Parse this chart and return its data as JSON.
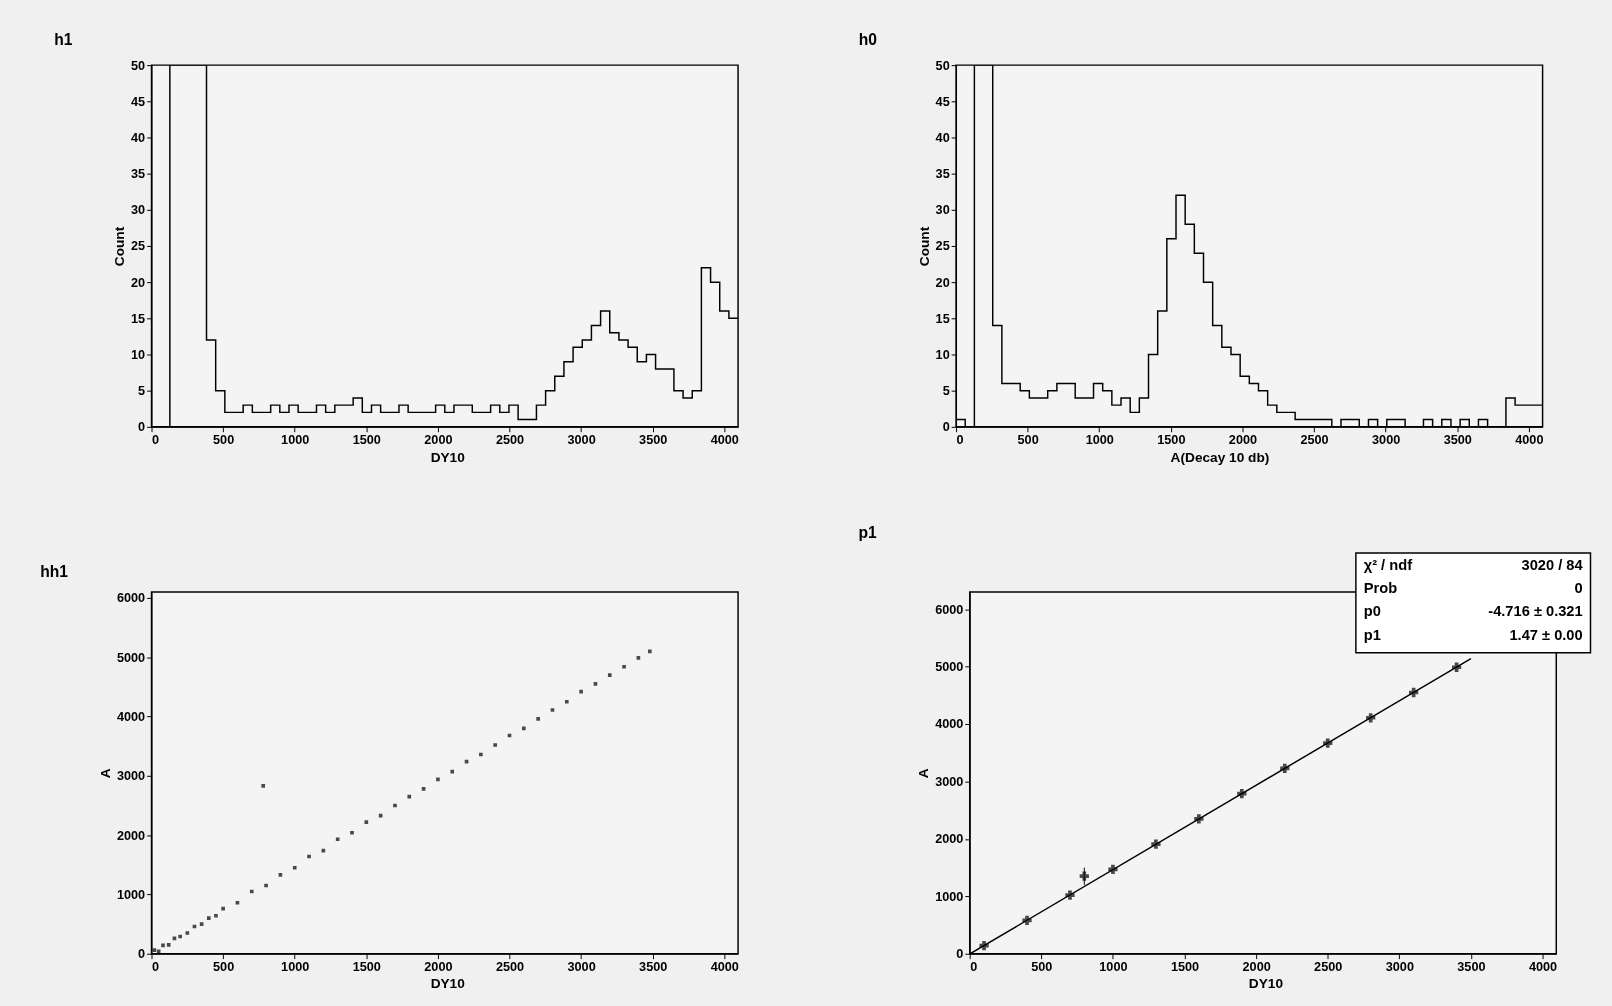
{
  "chart_data": [
    {
      "type": "histogram",
      "title": "h1",
      "xlabel": "DY10",
      "ylabel": "Count",
      "color": "#000000",
      "bins": [
        0,
        64,
        128,
        192,
        256,
        320,
        384,
        448,
        512,
        576,
        640,
        704,
        768,
        832,
        896,
        960,
        1024,
        1088,
        1152,
        1216,
        1280,
        1344,
        1408,
        1472,
        1536,
        1600,
        1664,
        1728,
        1792,
        1856,
        1920,
        1984,
        2048,
        2112,
        2176,
        2240,
        2304,
        2368,
        2432,
        2496,
        2560,
        2624,
        2688,
        2752,
        2816,
        2880,
        2944,
        3008,
        3072,
        3136,
        3200,
        3264,
        3328,
        3392,
        3456,
        3520,
        3584,
        3648,
        3712,
        3776,
        3840,
        3904,
        3968,
        4032,
        4096
      ],
      "values": [
        0,
        0,
        50,
        50,
        50,
        50,
        12,
        5,
        2,
        2,
        3,
        2,
        2,
        3,
        2,
        3,
        2,
        2,
        3,
        2,
        3,
        3,
        4,
        2,
        3,
        2,
        2,
        3,
        2,
        2,
        2,
        3,
        2,
        3,
        3,
        2,
        2,
        3,
        2,
        3,
        1,
        1,
        3,
        5,
        7,
        9,
        11,
        12,
        14,
        16,
        13,
        12,
        11,
        9,
        10,
        8,
        8,
        5,
        4,
        5,
        22,
        20,
        16,
        15
      ],
      "xlim": [
        0,
        4096
      ],
      "xticks": [
        0,
        500,
        1000,
        1500,
        2000,
        2500,
        3000,
        3500,
        4000
      ],
      "ylim": [
        0,
        50
      ],
      "yticks": [
        0,
        5,
        10,
        15,
        20,
        25,
        30,
        35,
        40,
        45,
        50
      ],
      "grid": false
    },
    {
      "type": "histogram",
      "title": "h0",
      "xlabel": "A(Decay 10 db)",
      "ylabel": "Count",
      "color": "#000000",
      "bins": [
        0,
        64,
        128,
        192,
        256,
        320,
        384,
        448,
        512,
        576,
        640,
        704,
        768,
        832,
        896,
        960,
        1024,
        1088,
        1152,
        1216,
        1280,
        1344,
        1408,
        1472,
        1536,
        1600,
        1664,
        1728,
        1792,
        1856,
        1920,
        1984,
        2048,
        2112,
        2176,
        2240,
        2304,
        2368,
        2432,
        2496,
        2560,
        2624,
        2688,
        2752,
        2816,
        2880,
        2944,
        3008,
        3072,
        3136,
        3200,
        3264,
        3328,
        3392,
        3456,
        3520,
        3584,
        3648,
        3712,
        3776,
        3840,
        3904,
        3968,
        4032,
        4096
      ],
      "values": [
        1,
        0,
        50,
        50,
        14,
        6,
        6,
        5,
        4,
        4,
        5,
        6,
        6,
        4,
        4,
        6,
        5,
        3,
        4,
        2,
        4,
        10,
        16,
        26,
        32,
        28,
        24,
        20,
        14,
        11,
        10,
        7,
        6,
        5,
        3,
        2,
        2,
        1,
        1,
        1,
        1,
        0,
        1,
        1,
        0,
        1,
        0,
        1,
        1,
        0,
        0,
        1,
        0,
        1,
        0,
        1,
        0,
        1,
        0,
        0,
        4,
        3,
        3,
        3
      ],
      "xlim": [
        0,
        4096
      ],
      "xticks": [
        0,
        500,
        1000,
        1500,
        2000,
        2500,
        3000,
        3500,
        4000
      ],
      "ylim": [
        0,
        50
      ],
      "yticks": [
        0,
        5,
        10,
        15,
        20,
        25,
        30,
        35,
        40,
        45,
        50
      ],
      "grid": false
    },
    {
      "type": "scatter",
      "title": "hh1",
      "xlabel": "DY10",
      "ylabel": "A",
      "color": "#000000",
      "marker": "square",
      "x": [
        20,
        50,
        80,
        120,
        160,
        200,
        250,
        300,
        350,
        400,
        450,
        500,
        600,
        700,
        800,
        900,
        1000,
        1100,
        1200,
        1300,
        1400,
        1500,
        1600,
        1700,
        1800,
        1900,
        2000,
        2100,
        2200,
        2300,
        2400,
        2500,
        2600,
        2700,
        2800,
        2900,
        3000,
        3100,
        3200,
        3300,
        3400,
        3480,
        780
      ],
      "values": [
        60,
        40,
        140,
        150,
        260,
        290,
        350,
        460,
        500,
        600,
        640,
        760,
        860,
        1050,
        1150,
        1330,
        1450,
        1640,
        1740,
        1930,
        2040,
        2220,
        2330,
        2500,
        2650,
        2780,
        2940,
        3070,
        3240,
        3360,
        3520,
        3680,
        3800,
        3960,
        4110,
        4250,
        4420,
        4550,
        4700,
        4840,
        4990,
        5100,
        2830
      ],
      "xlim": [
        0,
        4096
      ],
      "xticks": [
        0,
        500,
        1000,
        1500,
        2000,
        2500,
        3000,
        3500,
        4000
      ],
      "ylim": [
        0,
        6100
      ],
      "yticks": [
        0,
        1000,
        2000,
        3000,
        4000,
        5000,
        6000
      ],
      "grid": false
    },
    {
      "type": "scatter",
      "title": "p1",
      "xlabel": "DY10",
      "ylabel": "A",
      "grid": false,
      "series": [
        {
          "type": "scatter",
          "color": "#000000",
          "marker": "cross",
          "x": [
            100,
            400,
            700,
            800,
            1000,
            1300,
            1600,
            1900,
            2200,
            2500,
            2800,
            3100,
            3400
          ],
          "values": [
            140,
            580,
            1020,
            1350,
            1470,
            1910,
            2350,
            2790,
            3230,
            3670,
            4110,
            4550,
            4990
          ],
          "errors": [
            null,
            null,
            null,
            150,
            null,
            null,
            null,
            null,
            null,
            null,
            null,
            null,
            null
          ]
        },
        {
          "type": "line",
          "color": "#000000",
          "line_style": "solid",
          "x": [
            3.2,
            3500
          ],
          "values": [
            0,
            5140
          ]
        }
      ],
      "annotations": [
        "χ² / ndf",
        "3020 / 84",
        "Prob",
        "0",
        "p0",
        "-4.716 ± 0.321",
        "p1",
        "1.47 ± 0.00"
      ],
      "xlim": [
        0,
        4096
      ],
      "xticks": [
        0,
        500,
        1000,
        1500,
        2000,
        2500,
        3000,
        3500,
        4000
      ],
      "ylim": [
        0,
        6300
      ],
      "yticks": [
        0,
        1000,
        2000,
        3000,
        4000,
        5000,
        6000
      ]
    }
  ]
}
